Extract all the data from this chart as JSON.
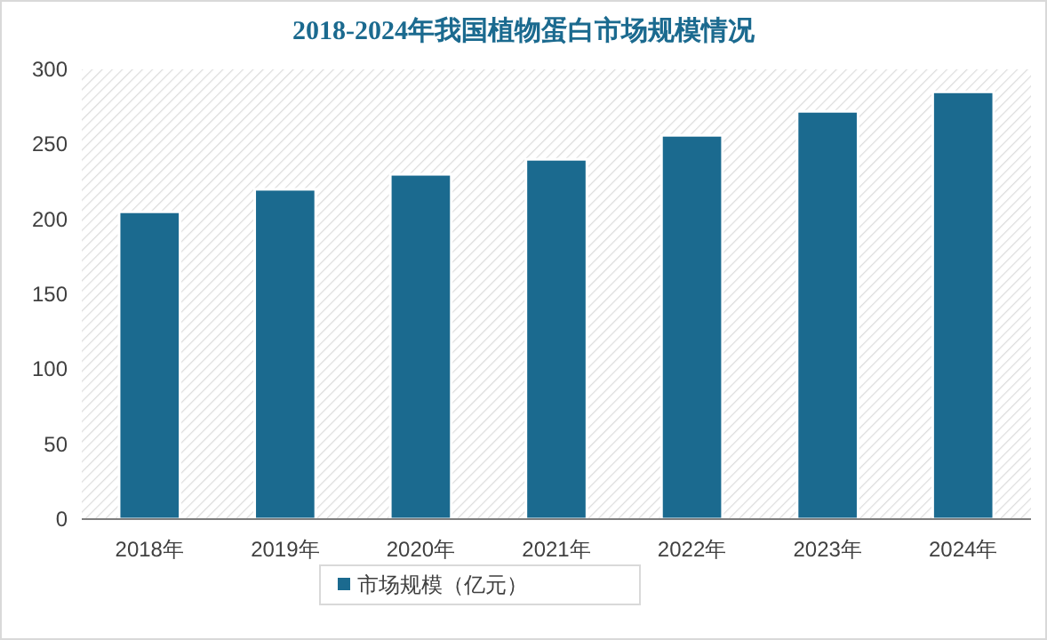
{
  "chart_data": {
    "type": "bar",
    "title": "2018-2024年我国植物蛋白市场规模情况",
    "categories": [
      "2018年",
      "2019年",
      "2020年",
      "2021年",
      "2022年",
      "2023年",
      "2024年"
    ],
    "series": [
      {
        "name": "市场规模（亿元）",
        "color": "#1b6a8f",
        "values": [
          205,
          220,
          230,
          240,
          256,
          272,
          285
        ]
      }
    ],
    "ylim": [
      0,
      300
    ],
    "yticks": [
      0,
      50,
      100,
      150,
      200,
      250,
      300
    ],
    "legend": "bottom"
  }
}
